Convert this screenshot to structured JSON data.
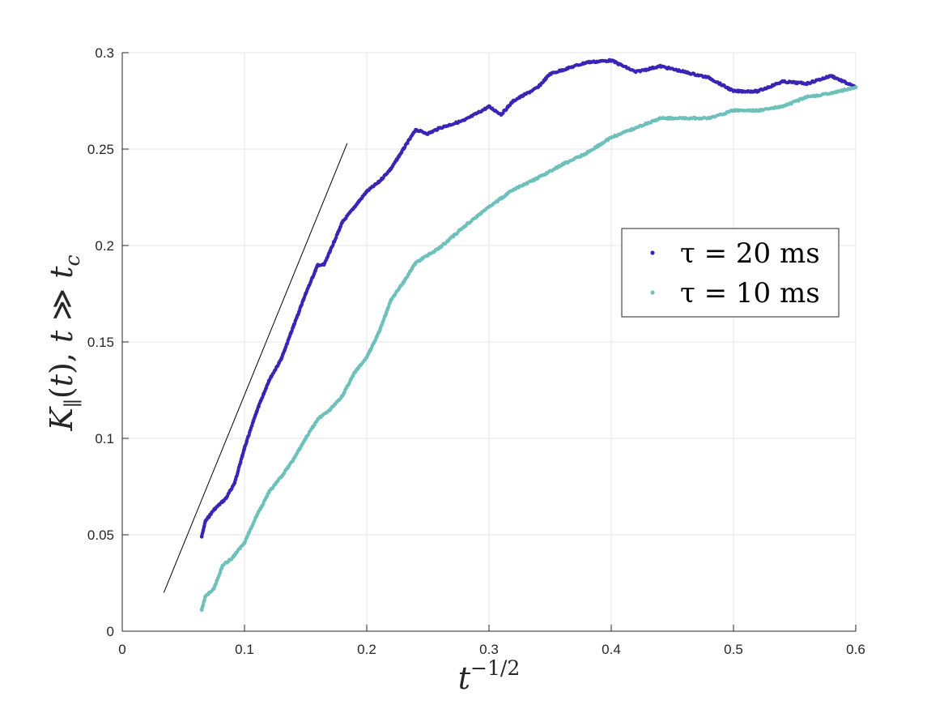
{
  "chart_data": {
    "type": "scatter",
    "title": "",
    "xlabel": "t^{-1/2}",
    "ylabel": "K_{∥}(t),  t ≫ t_c",
    "xlim": [
      0,
      0.6
    ],
    "ylim": [
      0,
      0.3
    ],
    "x_ticks": [
      0,
      0.1,
      0.2,
      0.3,
      0.4,
      0.5,
      0.6
    ],
    "x_tick_labels": [
      "0",
      "0.1",
      "0.2",
      "0.3",
      "0.4",
      "0.5",
      "0.6"
    ],
    "y_ticks": [
      0,
      0.05,
      0.1,
      0.15,
      0.2,
      0.25,
      0.3
    ],
    "y_tick_labels": [
      "0",
      "0.05",
      "0.1",
      "0.15",
      "0.2",
      "0.25",
      "0.3"
    ],
    "grid": true,
    "legend_position": "right",
    "series": [
      {
        "name": "τ = 20 ms",
        "color": "#3a24b5",
        "points": [
          [
            0.065,
            0.049
          ],
          [
            0.068,
            0.057
          ],
          [
            0.075,
            0.063
          ],
          [
            0.085,
            0.069
          ],
          [
            0.092,
            0.077
          ],
          [
            0.1,
            0.095
          ],
          [
            0.11,
            0.114
          ],
          [
            0.12,
            0.13
          ],
          [
            0.13,
            0.141
          ],
          [
            0.14,
            0.158
          ],
          [
            0.15,
            0.175
          ],
          [
            0.16,
            0.19
          ],
          [
            0.165,
            0.19
          ],
          [
            0.17,
            0.197
          ],
          [
            0.18,
            0.212
          ],
          [
            0.19,
            0.22
          ],
          [
            0.2,
            0.228
          ],
          [
            0.21,
            0.233
          ],
          [
            0.22,
            0.24
          ],
          [
            0.23,
            0.25
          ],
          [
            0.24,
            0.26
          ],
          [
            0.25,
            0.258
          ],
          [
            0.26,
            0.261
          ],
          [
            0.28,
            0.265
          ],
          [
            0.3,
            0.272
          ],
          [
            0.31,
            0.268
          ],
          [
            0.32,
            0.275
          ],
          [
            0.34,
            0.282
          ],
          [
            0.35,
            0.289
          ],
          [
            0.36,
            0.291
          ],
          [
            0.38,
            0.295
          ],
          [
            0.4,
            0.296
          ],
          [
            0.42,
            0.29
          ],
          [
            0.44,
            0.293
          ],
          [
            0.46,
            0.29
          ],
          [
            0.48,
            0.287
          ],
          [
            0.5,
            0.28
          ],
          [
            0.52,
            0.28
          ],
          [
            0.54,
            0.285
          ],
          [
            0.56,
            0.284
          ],
          [
            0.58,
            0.288
          ],
          [
            0.6,
            0.282
          ]
        ]
      },
      {
        "name": "τ = 10 ms",
        "color": "#6ec1ba",
        "points": [
          [
            0.065,
            0.011
          ],
          [
            0.068,
            0.018
          ],
          [
            0.075,
            0.022
          ],
          [
            0.082,
            0.034
          ],
          [
            0.09,
            0.038
          ],
          [
            0.1,
            0.046
          ],
          [
            0.11,
            0.06
          ],
          [
            0.12,
            0.072
          ],
          [
            0.13,
            0.08
          ],
          [
            0.14,
            0.089
          ],
          [
            0.15,
            0.1
          ],
          [
            0.16,
            0.11
          ],
          [
            0.17,
            0.115
          ],
          [
            0.18,
            0.122
          ],
          [
            0.19,
            0.134
          ],
          [
            0.2,
            0.142
          ],
          [
            0.21,
            0.155
          ],
          [
            0.22,
            0.172
          ],
          [
            0.23,
            0.181
          ],
          [
            0.24,
            0.191
          ],
          [
            0.26,
            0.199
          ],
          [
            0.28,
            0.21
          ],
          [
            0.3,
            0.22
          ],
          [
            0.32,
            0.229
          ],
          [
            0.34,
            0.235
          ],
          [
            0.36,
            0.242
          ],
          [
            0.38,
            0.248
          ],
          [
            0.4,
            0.256
          ],
          [
            0.42,
            0.261
          ],
          [
            0.44,
            0.266
          ],
          [
            0.46,
            0.266
          ],
          [
            0.48,
            0.266
          ],
          [
            0.5,
            0.27
          ],
          [
            0.52,
            0.27
          ],
          [
            0.54,
            0.272
          ],
          [
            0.56,
            0.277
          ],
          [
            0.58,
            0.279
          ],
          [
            0.6,
            0.282
          ]
        ]
      }
    ],
    "reference_line": {
      "x": [
        0.034,
        0.184
      ],
      "y": [
        0.02,
        0.253
      ],
      "color": "#000000"
    }
  }
}
